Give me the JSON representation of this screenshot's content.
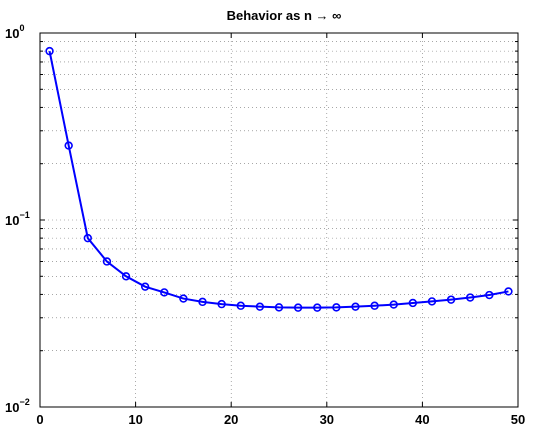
{
  "chart_data": {
    "type": "line",
    "title": "Behavior as n → ∞",
    "xlabel": "",
    "ylabel": "",
    "xlim": [
      0,
      50
    ],
    "ylim": [
      0.01,
      1
    ],
    "yscale": "log",
    "grid": true,
    "x_ticks": [
      0,
      10,
      20,
      30,
      40,
      50
    ],
    "y_ticks": [
      {
        "value": 0.01,
        "base": "10",
        "exp": "−2"
      },
      {
        "value": 0.1,
        "base": "10",
        "exp": "−1"
      },
      {
        "value": 1,
        "base": "10",
        "exp": "0"
      }
    ],
    "series": [
      {
        "color": "#0000ff",
        "marker": "circle",
        "x": [
          1,
          3,
          5,
          7,
          9,
          11,
          13,
          15,
          17,
          19,
          21,
          23,
          25,
          27,
          29,
          31,
          33,
          35,
          37,
          39,
          41,
          43,
          45,
          47,
          49
        ],
        "y": [
          0.8,
          0.25,
          0.08,
          0.06,
          0.05,
          0.044,
          0.041,
          0.038,
          0.0365,
          0.0355,
          0.0348,
          0.0344,
          0.0341,
          0.034,
          0.034,
          0.0341,
          0.0344,
          0.0348,
          0.0353,
          0.036,
          0.0367,
          0.0375,
          0.0385,
          0.0397,
          0.0415
        ]
      }
    ]
  }
}
